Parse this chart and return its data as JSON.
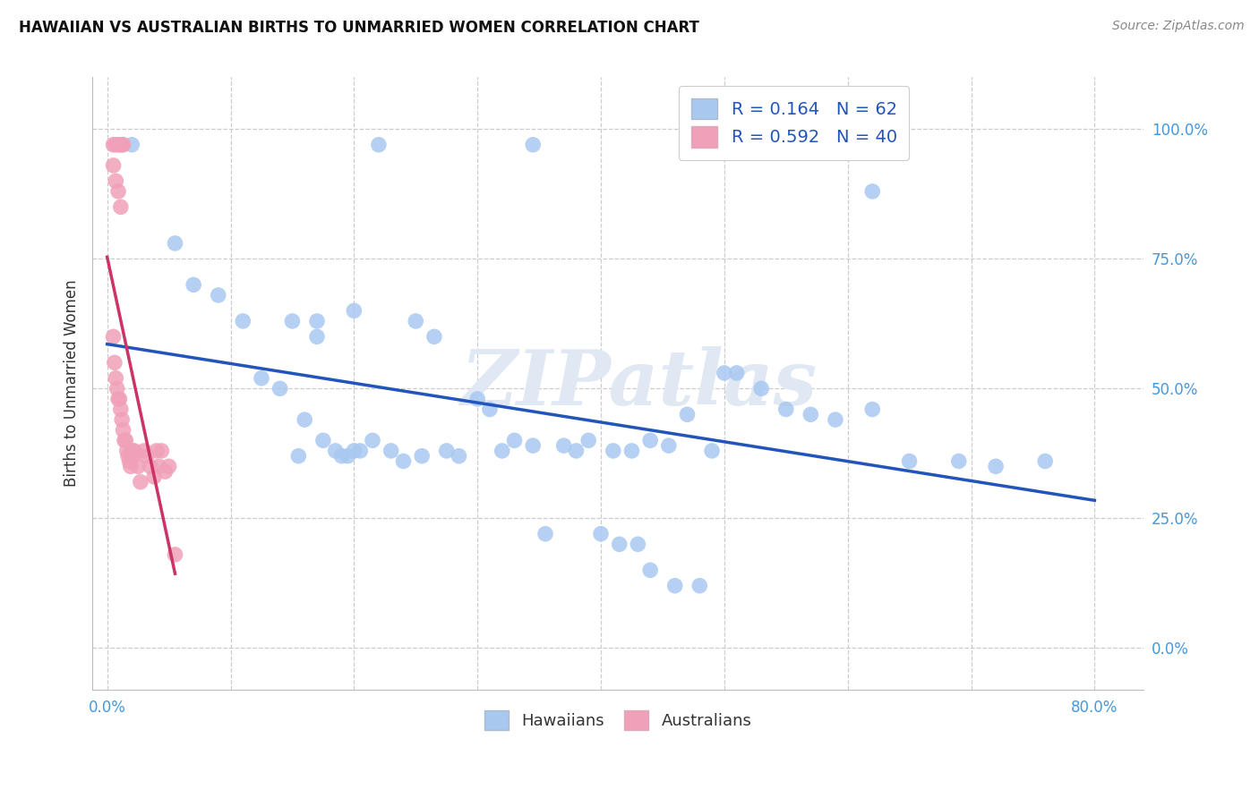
{
  "title": "HAWAIIAN VS AUSTRALIAN BIRTHS TO UNMARRIED WOMEN CORRELATION CHART",
  "source": "Source: ZipAtlas.com",
  "ylabel": "Births to Unmarried Women",
  "ytick_labels": [
    "0.0%",
    "25.0%",
    "50.0%",
    "75.0%",
    "100.0%"
  ],
  "ytick_vals": [
    0.0,
    0.25,
    0.5,
    0.75,
    1.0
  ],
  "xtick_labels": [
    "0.0%",
    "80.0%"
  ],
  "xtick_vals": [
    0.0,
    0.8
  ],
  "legend_blue_r": "R = 0.164",
  "legend_blue_n": "N = 62",
  "legend_pink_r": "R = 0.592",
  "legend_pink_n": "N = 40",
  "blue_scatter_color": "#a8c8f0",
  "pink_scatter_color": "#f0a0b8",
  "blue_line_color": "#2255bb",
  "pink_line_color": "#cc3366",
  "watermark_text": "ZIPatlas",
  "watermark_color": "#e0e8f4",
  "grid_color": "#cccccc",
  "title_color": "#111111",
  "source_color": "#888888",
  "ylabel_color": "#333333",
  "tick_color": "#4499dd",
  "bottom_legend_label_color": "#333333",
  "legend_text_color": "#2255bb",
  "xlim": [
    -0.012,
    0.84
  ],
  "ylim": [
    -0.08,
    1.1
  ],
  "haw_x": [
    0.02,
    0.22,
    0.345,
    0.5,
    0.62,
    0.15,
    0.17,
    0.17,
    0.2,
    0.25,
    0.265,
    0.3,
    0.31,
    0.33,
    0.345,
    0.37,
    0.39,
    0.41,
    0.425,
    0.44,
    0.455,
    0.47,
    0.49,
    0.51,
    0.53,
    0.55,
    0.57,
    0.59,
    0.62,
    0.65,
    0.69,
    0.72,
    0.76,
    0.055,
    0.07,
    0.09,
    0.11,
    0.125,
    0.14,
    0.155,
    0.16,
    0.175,
    0.185,
    0.19,
    0.195,
    0.2,
    0.205,
    0.215,
    0.23,
    0.24,
    0.255,
    0.275,
    0.285,
    0.32,
    0.355,
    0.38,
    0.4,
    0.415,
    0.43,
    0.44,
    0.46,
    0.48
  ],
  "haw_y": [
    0.97,
    0.97,
    0.97,
    0.53,
    0.88,
    0.63,
    0.63,
    0.6,
    0.65,
    0.63,
    0.6,
    0.48,
    0.46,
    0.4,
    0.39,
    0.39,
    0.4,
    0.38,
    0.38,
    0.4,
    0.39,
    0.45,
    0.38,
    0.53,
    0.5,
    0.46,
    0.45,
    0.44,
    0.46,
    0.36,
    0.36,
    0.35,
    0.36,
    0.78,
    0.7,
    0.68,
    0.63,
    0.52,
    0.5,
    0.37,
    0.44,
    0.4,
    0.38,
    0.37,
    0.37,
    0.38,
    0.38,
    0.4,
    0.38,
    0.36,
    0.37,
    0.38,
    0.37,
    0.38,
    0.22,
    0.38,
    0.22,
    0.2,
    0.2,
    0.15,
    0.12,
    0.12
  ],
  "aus_x": [
    0.005,
    0.007,
    0.009,
    0.011,
    0.012,
    0.013,
    0.005,
    0.007,
    0.009,
    0.011,
    0.005,
    0.006,
    0.007,
    0.008,
    0.009,
    0.01,
    0.011,
    0.012,
    0.013,
    0.014,
    0.015,
    0.016,
    0.017,
    0.018,
    0.019,
    0.02,
    0.021,
    0.022,
    0.025,
    0.027,
    0.03,
    0.032,
    0.035,
    0.038,
    0.04,
    0.042,
    0.044,
    0.047,
    0.05,
    0.055
  ],
  "aus_y": [
    0.97,
    0.97,
    0.97,
    0.97,
    0.97,
    0.97,
    0.93,
    0.9,
    0.88,
    0.85,
    0.6,
    0.55,
    0.52,
    0.5,
    0.48,
    0.48,
    0.46,
    0.44,
    0.42,
    0.4,
    0.4,
    0.38,
    0.37,
    0.36,
    0.35,
    0.38,
    0.37,
    0.38,
    0.35,
    0.32,
    0.38,
    0.37,
    0.35,
    0.33,
    0.38,
    0.35,
    0.38,
    0.34,
    0.35,
    0.18
  ]
}
